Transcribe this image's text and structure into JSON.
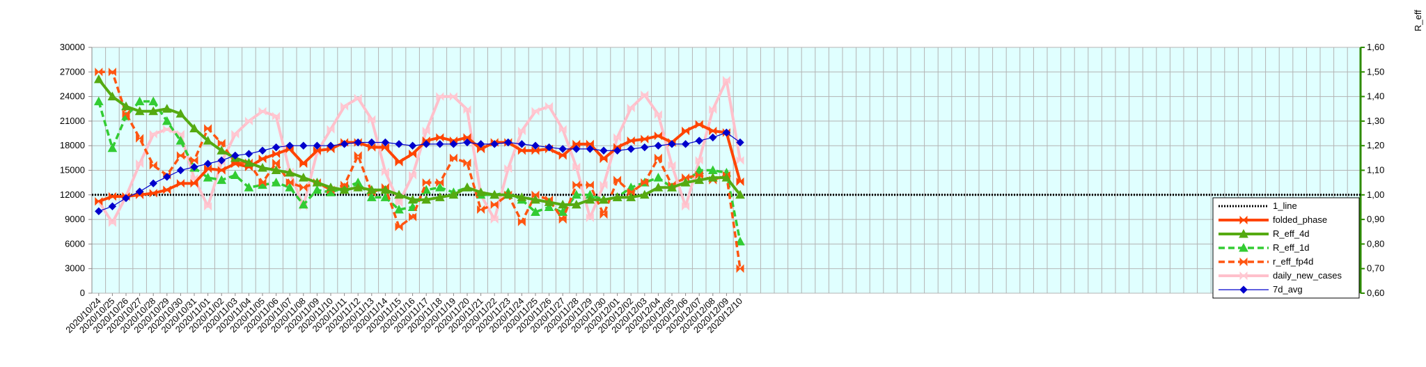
{
  "chart_data": {
    "type": "line",
    "title": "",
    "xlabel": "",
    "ylabel": "",
    "y2label": "R_eff",
    "ylim": [
      0,
      30000
    ],
    "y2lim": [
      0.6,
      1.6
    ],
    "yticks": [
      "0",
      "3000",
      "6000",
      "9000",
      "12000",
      "15000",
      "18000",
      "21000",
      "24000",
      "27000",
      "30000"
    ],
    "y2ticks": [
      "0,60",
      "0,70",
      "0,80",
      "0,90",
      "1,00",
      "1,10",
      "1,20",
      "1,30",
      "1,40",
      "1,50",
      "1,60"
    ],
    "grid": true,
    "background": "#e0ffff",
    "legend_position": "right",
    "categories": [
      "2020/10/24",
      "2020/10/25",
      "2020/10/26",
      "2020/10/27",
      "2020/10/28",
      "2020/10/29",
      "2020/10/30",
      "2020/10/31",
      "2020/11/01",
      "2020/11/02",
      "2020/11/03",
      "2020/11/04",
      "2020/11/05",
      "2020/11/06",
      "2020/11/07",
      "2020/11/08",
      "2020/11/09",
      "2020/11/10",
      "2020/11/11",
      "2020/11/12",
      "2020/11/13",
      "2020/11/14",
      "2020/11/15",
      "2020/11/16",
      "2020/11/17",
      "2020/11/18",
      "2020/11/19",
      "2020/11/20",
      "2020/11/21",
      "2020/11/22",
      "2020/11/23",
      "2020/11/24",
      "2020/11/25",
      "2020/11/26",
      "2020/11/27",
      "2020/11/28",
      "2020/11/29",
      "2020/11/30",
      "2020/12/01",
      "2020/12/02",
      "2020/12/03",
      "2020/12/04",
      "2020/12/05",
      "2020/12/06",
      "2020/12/07",
      "2020/12/08",
      "2020/12/09",
      "2020/12/10"
    ],
    "series": [
      {
        "name": "1_line",
        "axis": "right",
        "color": "#000000",
        "style": "dotted",
        "marker": "none",
        "values": [
          1,
          1,
          1,
          1,
          1,
          1,
          1,
          1,
          1,
          1,
          1,
          1,
          1,
          1,
          1,
          1,
          1,
          1,
          1,
          1,
          1,
          1,
          1,
          1,
          1,
          1,
          1,
          1,
          1,
          1,
          1,
          1,
          1,
          1,
          1,
          1,
          1,
          1,
          1,
          1,
          1,
          1,
          1,
          1,
          1,
          1,
          1,
          1
        ]
      },
      {
        "name": "daily_new_cases",
        "axis": "left",
        "color": "#ffc0cb",
        "style": "solid",
        "marker": "bowtie",
        "values": [
          11200,
          8600,
          11800,
          15800,
          19400,
          20000,
          19400,
          14000,
          10600,
          16000,
          19400,
          21000,
          22200,
          21600,
          14800,
          10600,
          17200,
          20000,
          22800,
          23800,
          21200,
          14800,
          11000,
          14400,
          19800,
          24000,
          24000,
          22400,
          12000,
          9000,
          15200,
          19800,
          22200,
          22800,
          20000,
          15400,
          9200,
          13200,
          19000,
          22600,
          24200,
          21800,
          15600,
          10600,
          16200,
          22400,
          26000,
          16200
        ]
      },
      {
        "name": "R_eff_1d",
        "axis": "right",
        "color": "#33cc33",
        "style": "dashed",
        "marker": "triangle",
        "values": [
          1.38,
          1.19,
          1.32,
          1.38,
          1.38,
          1.3,
          1.22,
          1.11,
          1.07,
          1.06,
          1.08,
          1.03,
          1.04,
          1.05,
          1.03,
          0.96,
          1.02,
          1.01,
          1.03,
          1.05,
          0.99,
          0.99,
          0.94,
          0.95,
          1.02,
          1.03,
          1.01,
          1.03,
          1.0,
          1.0,
          1.01,
          0.98,
          0.93,
          0.95,
          0.93,
          1.0,
          1.0,
          0.98,
          0.99,
          1.03,
          1.05,
          1.07,
          1.03,
          1.05,
          1.1,
          1.1,
          1.09,
          0.81
        ]
      },
      {
        "name": "r_eff_fp4d",
        "axis": "right",
        "color": "#ff5511",
        "style": "dashed",
        "marker": "bowtie",
        "values": [
          1.5,
          1.5,
          1.33,
          1.23,
          1.12,
          1.08,
          1.16,
          1.14,
          1.27,
          1.21,
          1.13,
          1.13,
          1.05,
          1.13,
          1.05,
          1.03,
          1.05,
          1.02,
          1.04,
          1.16,
          1.01,
          1.03,
          0.87,
          0.91,
          1.05,
          1.05,
          1.15,
          1.13,
          0.94,
          0.96,
          1.0,
          0.89,
          1.0,
          0.98,
          0.9,
          1.04,
          1.04,
          0.92,
          1.06,
          1.01,
          1.05,
          1.15,
          1.04,
          1.07,
          1.08,
          1.06,
          1.08,
          0.7
        ]
      },
      {
        "name": "folded_phase",
        "axis": "left",
        "color": "#ff4400",
        "style": "solid",
        "marker": "bowtie",
        "values": [
          11200,
          11800,
          11800,
          12000,
          12200,
          12600,
          13400,
          13400,
          15200,
          15000,
          15800,
          15400,
          16400,
          17000,
          17600,
          15800,
          17400,
          17600,
          18400,
          18400,
          17800,
          17800,
          16000,
          17000,
          18600,
          19000,
          18600,
          19000,
          17600,
          18400,
          18400,
          17400,
          17400,
          17600,
          16800,
          18200,
          18200,
          16400,
          17800,
          18600,
          18800,
          19200,
          18400,
          19800,
          20600,
          19800,
          19600,
          13600
        ]
      },
      {
        "name": "R_eff_4d",
        "axis": "right",
        "color": "#55aa11",
        "style": "solid",
        "marker": "triangle",
        "values": [
          1.47,
          1.4,
          1.36,
          1.34,
          1.34,
          1.35,
          1.33,
          1.27,
          1.22,
          1.18,
          1.15,
          1.13,
          1.11,
          1.1,
          1.09,
          1.07,
          1.05,
          1.03,
          1.02,
          1.03,
          1.02,
          1.02,
          1.0,
          0.98,
          0.98,
          0.99,
          1.0,
          1.03,
          1.01,
          1.0,
          1.0,
          0.99,
          0.98,
          0.97,
          0.96,
          0.96,
          0.98,
          0.98,
          0.99,
          0.99,
          1.0,
          1.03,
          1.03,
          1.05,
          1.06,
          1.07,
          1.07,
          1.0
        ]
      },
      {
        "name": "7d_avg",
        "axis": "left",
        "color": "#0000cc",
        "style": "thin",
        "marker": "diamond",
        "values": [
          10000,
          10600,
          11600,
          12400,
          13400,
          14200,
          15000,
          15400,
          15800,
          16200,
          16800,
          17000,
          17400,
          17800,
          18000,
          18000,
          18000,
          18000,
          18200,
          18400,
          18400,
          18400,
          18200,
          18000,
          18200,
          18200,
          18200,
          18400,
          18200,
          18200,
          18400,
          18200,
          18000,
          17800,
          17600,
          17600,
          17600,
          17400,
          17400,
          17600,
          17800,
          18000,
          18200,
          18200,
          18600,
          19000,
          19600,
          18400
        ]
      }
    ],
    "legend_order": [
      "1_line",
      "folded_phase",
      "R_eff_4d",
      "R_eff_1d",
      "r_eff_fp4d",
      "daily_new_cases",
      "7d_avg"
    ]
  }
}
